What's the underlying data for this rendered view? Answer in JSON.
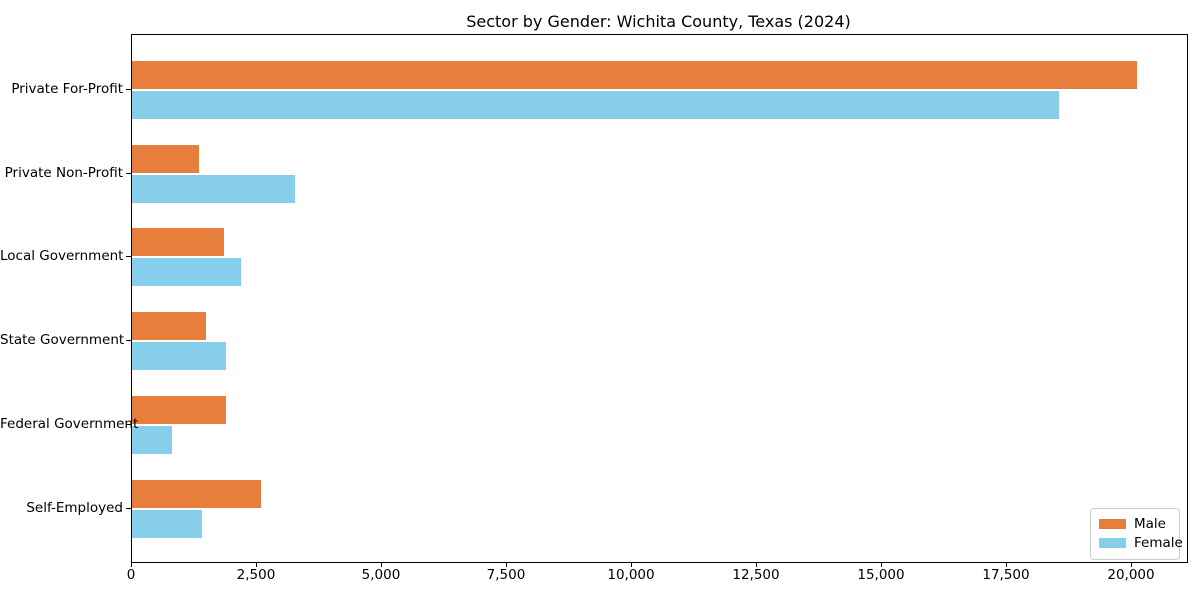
{
  "chart_data": {
    "type": "bar",
    "orientation": "horizontal",
    "title": "Sector by Gender: Wichita County, Texas (2024)",
    "categories": [
      "Private For-Profit",
      "Private Non-Profit",
      "Local Government",
      "State Government",
      "Federal Government",
      "Self-Employed"
    ],
    "series": [
      {
        "name": "Male",
        "color": "#E87E3C",
        "values": [
          20090,
          1330,
          1830,
          1480,
          1870,
          2580
        ]
      },
      {
        "name": "Female",
        "color": "#87CEEB",
        "values": [
          18530,
          3250,
          2180,
          1870,
          790,
          1400
        ]
      }
    ],
    "xlim": [
      0,
      21100
    ],
    "xticks": [
      0,
      2500,
      5000,
      7500,
      10000,
      12500,
      15000,
      17500,
      20000
    ],
    "xtick_labels": [
      "0",
      "2,500",
      "5,000",
      "7,500",
      "10,000",
      "12,500",
      "15,000",
      "17,500",
      "20,000"
    ],
    "xlabel": "",
    "ylabel": "",
    "grid": false,
    "legend": {
      "position": "lower right"
    },
    "colors": {
      "spine": "#000000",
      "text": "#000000",
      "legend_border": "#cccccc",
      "background": "#ffffff"
    }
  }
}
